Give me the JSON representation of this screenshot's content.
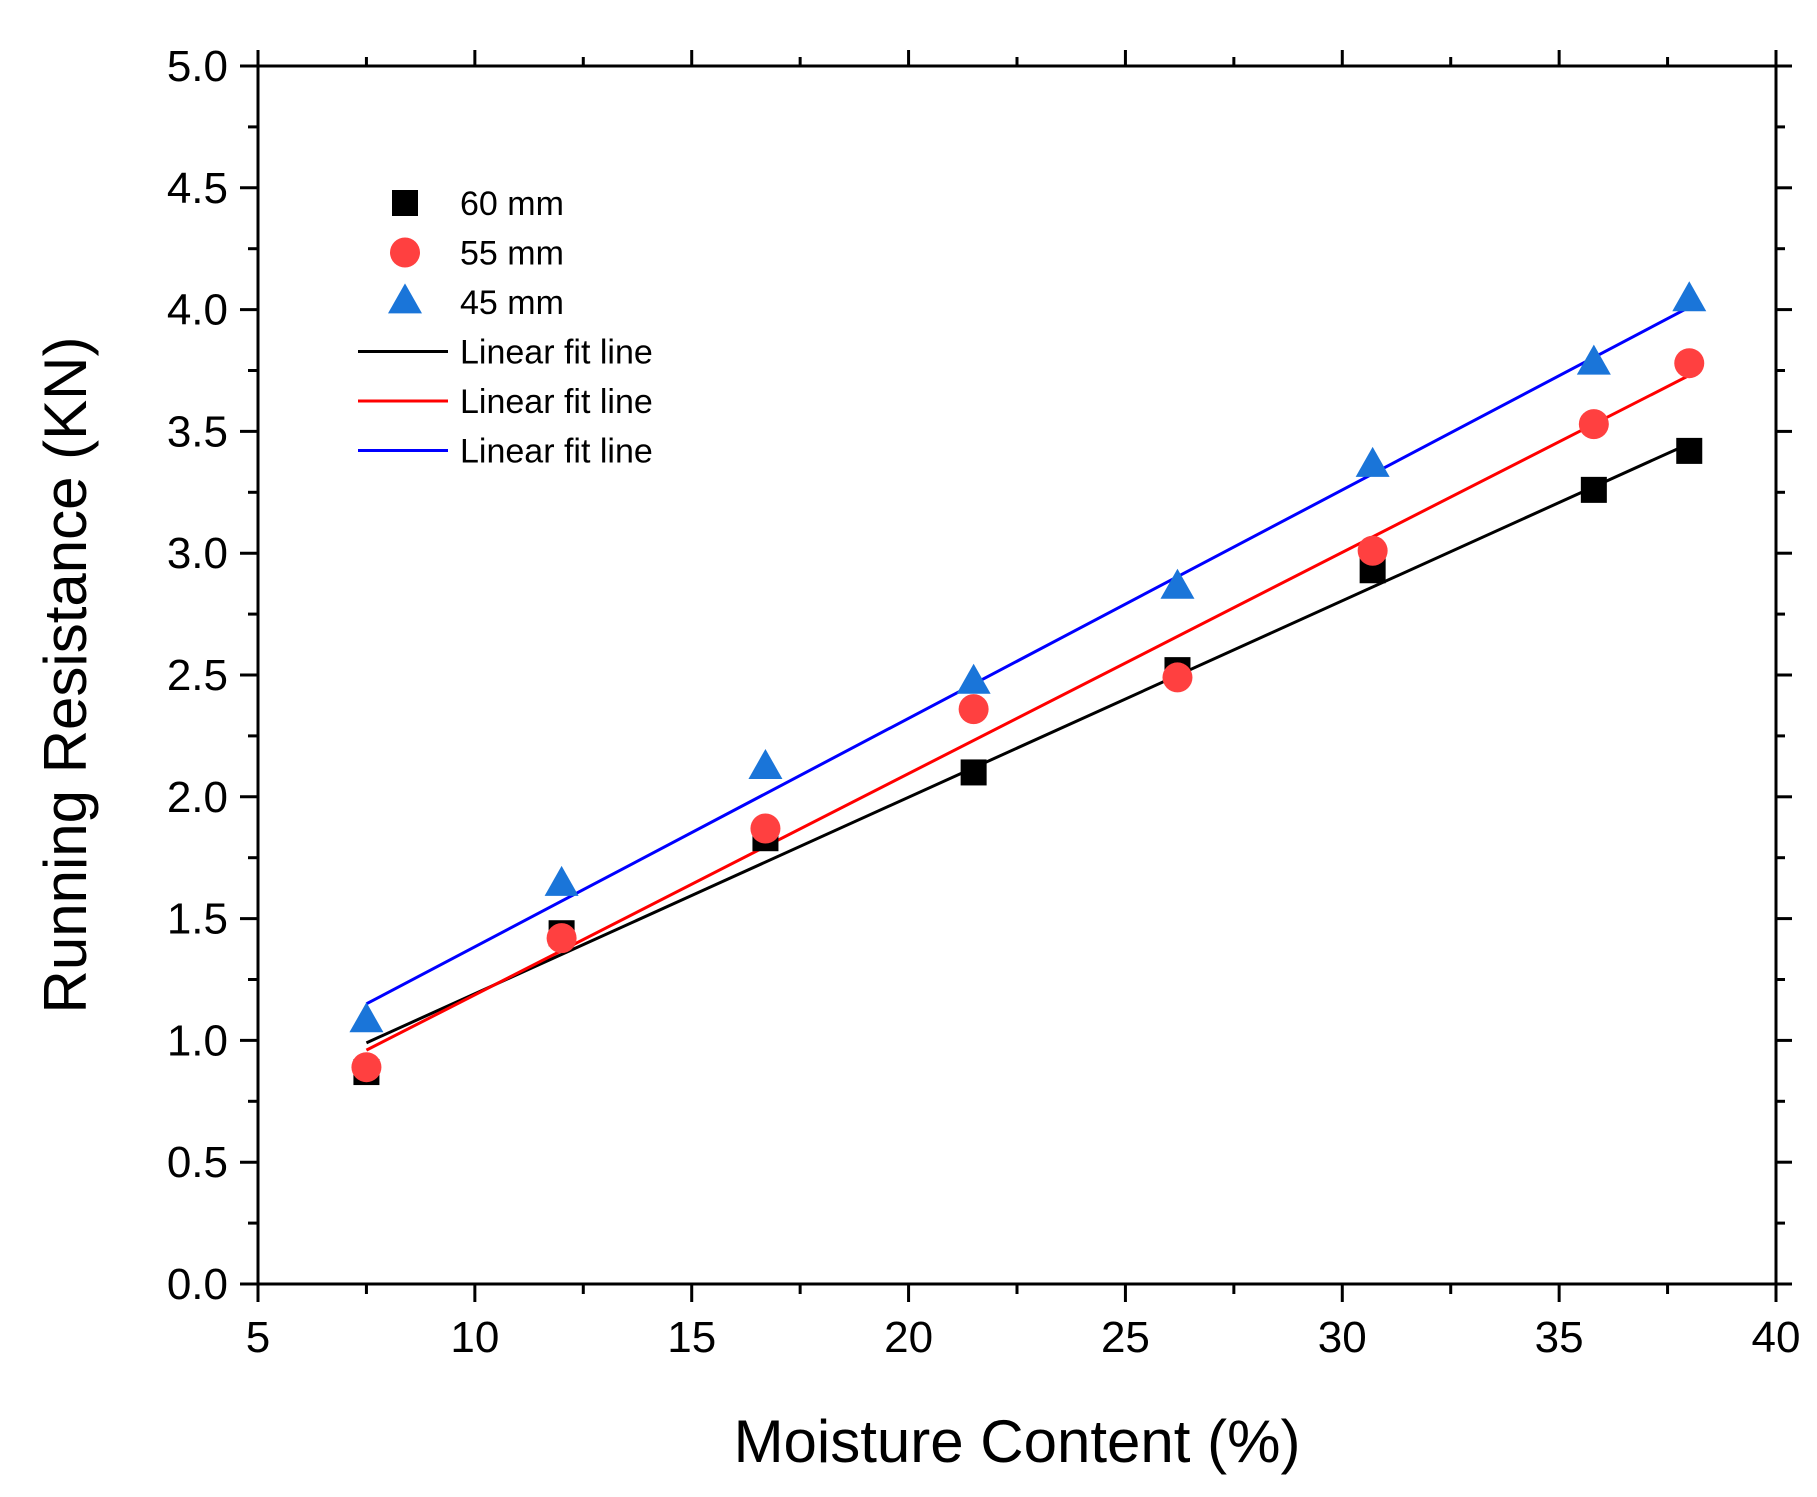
{
  "chart_data": {
    "type": "scatter",
    "xlabel": "Moisture Content (%)",
    "ylabel": "Running Resistance (KN)",
    "xlim": [
      5,
      40
    ],
    "ylim": [
      0.0,
      5.0
    ],
    "xticks": [
      "5",
      "10",
      "15",
      "20",
      "25",
      "30",
      "35",
      "40"
    ],
    "yticks": [
      "0.0",
      "0.5",
      "1.0",
      "1.5",
      "2.0",
      "2.5",
      "3.0",
      "3.5",
      "4.0",
      "4.5",
      "5.0"
    ],
    "x": [
      7.5,
      12.0,
      16.7,
      21.5,
      26.2,
      30.7,
      35.8,
      38.0
    ],
    "series": [
      {
        "name": "60 mm",
        "marker": "square",
        "color": "#000000",
        "values": [
          0.87,
          1.44,
          1.83,
          2.1,
          2.52,
          2.93,
          3.26,
          3.42
        ],
        "fit": {
          "label": "Linear fit line",
          "color": "#000000",
          "x0": 7.5,
          "y0": 0.99,
          "x1": 38.0,
          "y1": 3.45
        }
      },
      {
        "name": "55 mm",
        "marker": "circle",
        "color": "#ff4040",
        "values": [
          0.89,
          1.42,
          1.87,
          2.36,
          2.49,
          3.01,
          3.53,
          3.78
        ],
        "fit": {
          "label": "Linear fit line",
          "color": "#ff0000",
          "x0": 7.5,
          "y0": 0.96,
          "x1": 38.0,
          "y1": 3.73
        }
      },
      {
        "name": "45 mm",
        "marker": "triangle",
        "color": "#1a75d9",
        "values": [
          1.08,
          1.64,
          2.12,
          2.47,
          2.86,
          3.36,
          3.78,
          4.04
        ],
        "fit": {
          "label": "Linear fit line",
          "color": "#0000ff",
          "x0": 7.5,
          "y0": 1.15,
          "x1": 38.0,
          "y1": 4.01
        }
      }
    ],
    "legend_position": "top-left"
  }
}
